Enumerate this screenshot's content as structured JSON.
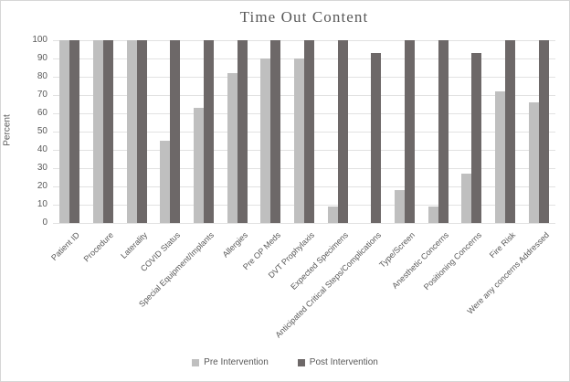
{
  "chart_data": {
    "type": "bar",
    "title": "Time Out Content",
    "xlabel": "",
    "ylabel": "Percent",
    "ylim": [
      0,
      100
    ],
    "yticks": [
      0,
      10,
      20,
      30,
      40,
      50,
      60,
      70,
      80,
      90,
      100
    ],
    "grid": true,
    "legend_position": "bottom",
    "categories": [
      "Patient ID",
      "Procedure",
      "Laterality",
      "COVID Status",
      "Special Equipment/Implants",
      "Allergies",
      "Pre OP Meds",
      "DVT Prophylaxis",
      "Expected Specimens",
      "Anticipated Critical Steps/Complications",
      "Type/Screen",
      "Anesthetic Concerns",
      "Positioning Concerns",
      "Fire Risk",
      "Were any concerns Addressed"
    ],
    "series": [
      {
        "name": "Pre Intervention",
        "color": "#bfbfbf",
        "values": [
          100,
          100,
          100,
          45,
          63,
          82,
          90,
          90,
          9,
          0,
          18,
          9,
          27,
          72,
          66
        ]
      },
      {
        "name": "Post Intervention",
        "color": "#6d6868",
        "values": [
          100,
          100,
          100,
          100,
          100,
          100,
          100,
          100,
          100,
          93,
          100,
          100,
          93,
          100,
          100
        ]
      }
    ],
    "colors": {
      "text": "#595959",
      "gridline": "#e2e2e2",
      "border": "#d6d6d6"
    }
  }
}
